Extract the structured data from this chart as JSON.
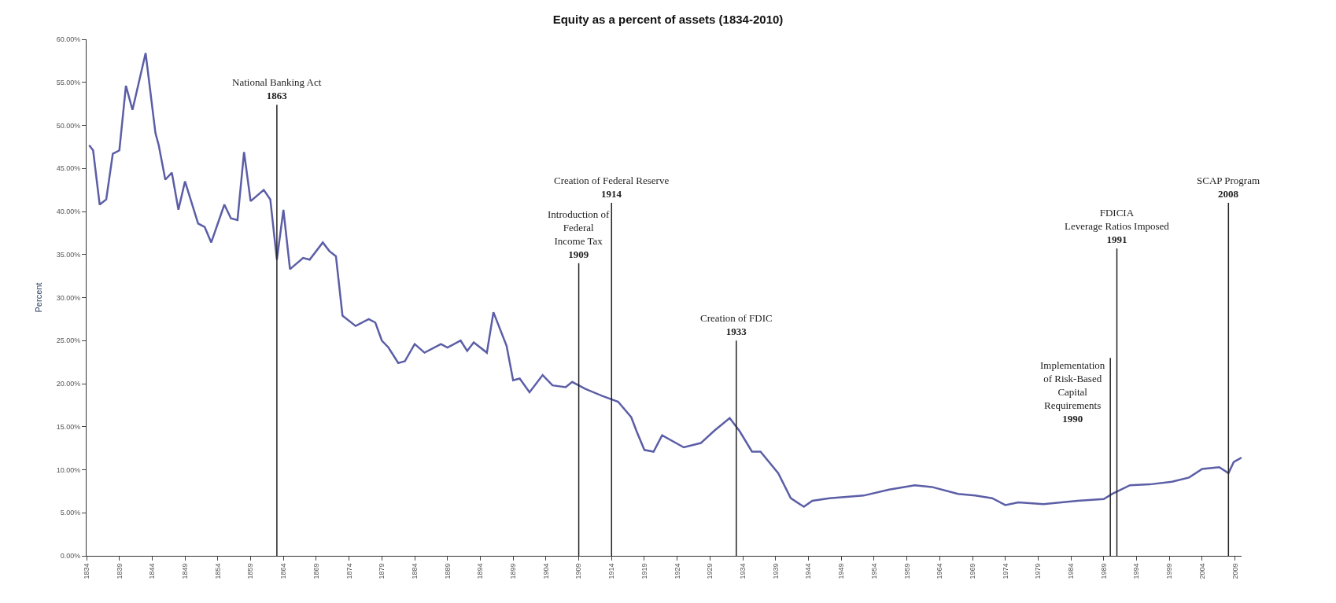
{
  "chart_data": {
    "type": "line",
    "title": "Equity as a percent of assets (1834-2010)",
    "ylabel": "Percent",
    "x": [
      1834.4,
      1835,
      1836,
      1837,
      1838,
      1839,
      1840,
      1841,
      1843,
      1844.5,
      1845,
      1846,
      1847,
      1848,
      1849,
      1851,
      1852,
      1853,
      1855,
      1856,
      1857,
      1858,
      1859,
      1861,
      1862,
      1863,
      1864,
      1865,
      1867,
      1868,
      1870,
      1871,
      1872,
      1873,
      1875,
      1877,
      1878,
      1879,
      1880,
      1881.5,
      1882.5,
      1884,
      1885.5,
      1888,
      1889,
      1891,
      1892,
      1893,
      1895,
      1896,
      1898,
      1899,
      1900,
      1901.5,
      1903.5,
      1905,
      1907,
      1908,
      1910,
      1912.5,
      1915,
      1917,
      1917.8,
      1919,
      1920.4,
      1921.7,
      1925,
      1927.6,
      1929.6,
      1932,
      1933.5,
      1935.4,
      1936.7,
      1939.4,
      1941.3,
      1943.3,
      1944.6,
      1947.2,
      1952.4,
      1956.3,
      1960.2,
      1962.8,
      1966.8,
      1969.4,
      1972,
      1974,
      1976,
      1979.8,
      1985,
      1989,
      1990.3,
      1993,
      1996,
      1999.4,
      2002,
      2004,
      2006.6,
      2008,
      2008.8,
      2010
    ],
    "series": [
      {
        "color": "#5b5ea6",
        "values": [
          47.7,
          47.1,
          40.8,
          41.4,
          46.7,
          47.1,
          54.6,
          51.8,
          58.4,
          49.1,
          47.7,
          43.7,
          44.5,
          40.2,
          43.5,
          38.6,
          38.2,
          36.4,
          40.8,
          39.2,
          39.0,
          46.9,
          41.2,
          42.5,
          41.4,
          34.4,
          40.2,
          33.3,
          34.6,
          34.4,
          36.4,
          35.4,
          34.8,
          27.9,
          26.7,
          27.5,
          27.1,
          25.0,
          24.2,
          22.4,
          22.6,
          24.6,
          23.6,
          24.6,
          24.2,
          25.0,
          23.8,
          24.8,
          23.6,
          28.3,
          24.4,
          20.4,
          20.6,
          19.0,
          21.0,
          19.8,
          19.6,
          20.2,
          19.4,
          18.6,
          17.9,
          16.1,
          14.5,
          12.3,
          12.1,
          14.0,
          12.6,
          13.1,
          14.5,
          16.0,
          14.5,
          12.1,
          12.1,
          9.6,
          6.7,
          5.7,
          6.4,
          6.7,
          7.0,
          7.7,
          8.2,
          8.0,
          7.2,
          7.0,
          6.7,
          5.9,
          6.2,
          6.0,
          6.4,
          6.6,
          7.2,
          8.2,
          8.3,
          8.6,
          9.1,
          10.1,
          10.3,
          9.6,
          10.9,
          11.4
        ]
      }
    ],
    "xlim": [
      1834,
      2010
    ],
    "xticks": [
      1834,
      1839,
      1844,
      1849,
      1854,
      1859,
      1864,
      1869,
      1874,
      1879,
      1884,
      1889,
      1894,
      1899,
      1904,
      1909,
      1914,
      1919,
      1924,
      1929,
      1934,
      1939,
      1944,
      1949,
      1954,
      1959,
      1964,
      1969,
      1974,
      1979,
      1984,
      1989,
      1994,
      1999,
      2004,
      2009
    ],
    "ylim": [
      0,
      60
    ],
    "yticks": [
      {
        "value": 0,
        "label": "0.00%"
      },
      {
        "value": 5,
        "label": "5.00%"
      },
      {
        "value": 10,
        "label": "10.00%"
      },
      {
        "value": 15,
        "label": "15.00%"
      },
      {
        "value": 20,
        "label": "20.00%"
      },
      {
        "value": 25,
        "label": "25.00%"
      },
      {
        "value": 30,
        "label": "30.00%"
      },
      {
        "value": 35,
        "label": "35.00%"
      },
      {
        "value": 40,
        "label": "40.00%"
      },
      {
        "value": 45,
        "label": "45.00%"
      },
      {
        "value": 50,
        "label": "50.00%"
      },
      {
        "value": 55,
        "label": "55.00%"
      },
      {
        "value": 60,
        "label": "60.00%"
      }
    ],
    "ref_lines": [
      {
        "axis": "x",
        "value": 1863,
        "label": "National Banking Act\n1863"
      },
      {
        "axis": "x",
        "value": 1909,
        "label": "Introduction of\nFederal\nIncome Tax\n1909"
      },
      {
        "axis": "x",
        "value": 1914,
        "label": "Creation of Federal Reserve\n1914"
      },
      {
        "axis": "x",
        "value": 1933,
        "label": "Creation of FDIC\n1933"
      },
      {
        "axis": "x",
        "value": 1990,
        "label": "Implementation\nof Risk-Based\nCapital\nRequirements\n1990"
      },
      {
        "axis": "x",
        "value": 1991,
        "label": "FDICIA\nLeverage Ratios Imposed\n1991"
      },
      {
        "axis": "x",
        "value": 2008,
        "label": "SCAP Program\n2008"
      }
    ],
    "grid": false,
    "legend": false,
    "marker": "none",
    "line_style": "solid"
  }
}
